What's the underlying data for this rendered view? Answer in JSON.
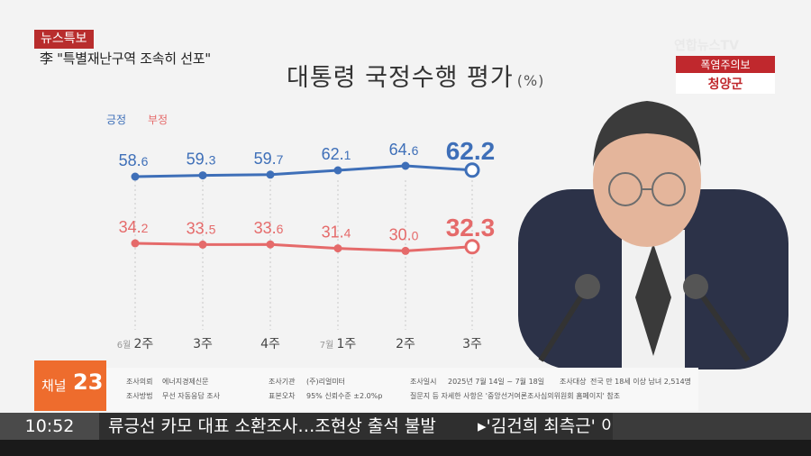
{
  "banner": {
    "flash_label": "뉴스특보",
    "subtitle": "李 \"특별재난구역 조속히 선포\""
  },
  "watermark": "연합뉴스TV",
  "warning": {
    "label": "폭염주의보",
    "region": "청양군"
  },
  "channel": {
    "prefix": "채널",
    "number": "23"
  },
  "ticker": {
    "time": "10:52",
    "headline": "류긍선 카모 대표 소환조사…조현상 출석 불발",
    "next": "▸'김건희 최측근' 이"
  },
  "source": {
    "client_label": "조사의뢰",
    "client": "에너지경제신문",
    "method_label": "조사방법",
    "method": "무선 자동응답 조사",
    "org_label": "조사기관",
    "org": "(주)리얼미터",
    "error_label": "표본오차",
    "error": "95% 신뢰수준 ±2.0%p",
    "date_label": "조사일시",
    "date": "2025년 7월 14일 ~ 7월 18일",
    "target_label": "조사대상",
    "target": "전국 만 18세 이상 남녀 2,514명",
    "note": "질문지 등 자세한 사항은 '중앙선거여론조사심의위원회 홈페이지' 참조"
  },
  "colors": {
    "positive": "#3e6fb8",
    "negative": "#e56a6a",
    "flash": "#b82d2d",
    "channel": "#ee6c2d"
  },
  "chart_data": {
    "type": "line",
    "title": "대통령 국정수행 평가",
    "unit": "(%)",
    "categories": [
      {
        "month": "6월",
        "week": "2주"
      },
      {
        "month": "",
        "week": "3주"
      },
      {
        "month": "",
        "week": "4주"
      },
      {
        "month": "7월",
        "week": "1주"
      },
      {
        "month": "",
        "week": "2주"
      },
      {
        "month": "",
        "week": "3주"
      }
    ],
    "series": [
      {
        "name": "긍정",
        "values": [
          58.6,
          59.3,
          59.7,
          62.1,
          64.6,
          62.2
        ]
      },
      {
        "name": "부정",
        "values": [
          34.2,
          33.5,
          33.6,
          31.4,
          30.0,
          32.3
        ]
      }
    ]
  }
}
